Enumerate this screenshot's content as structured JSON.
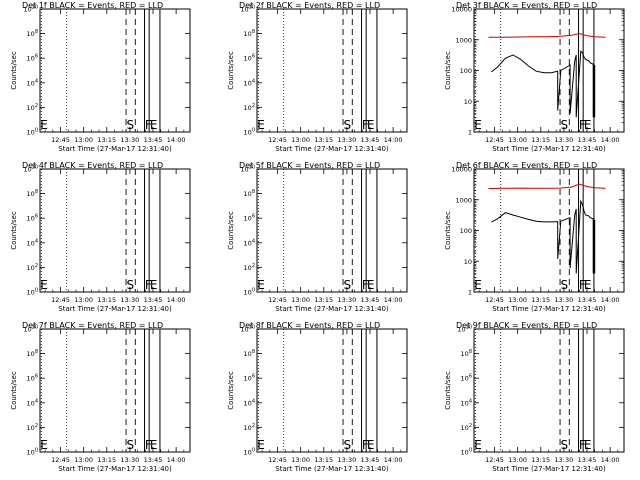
{
  "colors": {
    "events": "#000000",
    "lld": "#cc0000",
    "background": "#ffffff"
  },
  "chart_data": [
    {
      "type": "line",
      "title": "Det 1f BLACK = Events, RED = LLD",
      "xlabel": "Start Time (27-Mar-17 12:31:40)",
      "ylabel": "Counts/sec",
      "yscale": "log",
      "ylim": [
        1.0,
        10000000000.0
      ],
      "ytick_labels": [
        "10^0",
        "10^2",
        "10^4",
        "10^6",
        "10^8",
        "10^10"
      ],
      "xtick_labels": [
        "12:45",
        "13:00",
        "13:15",
        "13:30",
        "13:45",
        "14:00"
      ],
      "vertical_markers": [
        "E",
        "S",
        "F",
        "E"
      ],
      "series": []
    },
    {
      "type": "line",
      "title": "Det 2f BLACK = Events, RED = LLD",
      "xlabel": "Start Time (27-Mar-17 12:31:40)",
      "ylabel": "Counts/sec",
      "yscale": "log",
      "ylim": [
        1.0,
        10000000000.0
      ],
      "ytick_labels": [
        "10^0",
        "10^2",
        "10^4",
        "10^6",
        "10^8",
        "10^10"
      ],
      "xtick_labels": [
        "12:45",
        "13:00",
        "13:15",
        "13:30",
        "13:45",
        "14:00"
      ],
      "vertical_markers": [
        "E",
        "S",
        "F",
        "E"
      ],
      "series": []
    },
    {
      "type": "line",
      "title": "Det 3f BLACK = Events, RED = LLD",
      "xlabel": "Start Time (27-Mar-17 12:31:40)",
      "ylabel": "Counts/sec",
      "yscale": "log",
      "ylim": [
        1,
        10000
      ],
      "ytick_labels": [
        "1",
        "10",
        "100",
        "1000",
        "10000"
      ],
      "xtick_labels": [
        "12:45",
        "13:00",
        "13:15",
        "13:30",
        "13:45",
        "14:00"
      ],
      "vertical_markers": [
        "E",
        "S",
        "F",
        "E"
      ],
      "series": [
        {
          "color": "#cc0000",
          "x": [
            "12:41",
            "12:50",
            "13:00",
            "13:10",
            "13:20",
            "13:28",
            "13:35",
            "13:40",
            "13:45",
            "13:50",
            "13:57"
          ],
          "y": [
            1200,
            1200,
            1230,
            1260,
            1260,
            1300,
            1400,
            1600,
            1350,
            1250,
            1200
          ]
        },
        {
          "color": "#000000",
          "x": [
            "12:43",
            "12:47",
            "12:52",
            "12:57",
            "13:02",
            "13:07",
            "13:12",
            "13:17",
            "13:22",
            "13:26",
            "13:26",
            "13:28",
            "13:34",
            "13:34",
            "13:37",
            "13:38",
            "13:38",
            "13:41",
            "13:42",
            "13:43",
            "13:44",
            "13:46",
            "13:47",
            "13:49",
            "13:49",
            "13:50",
            "13:50"
          ],
          "y": [
            90,
            130,
            250,
            320,
            230,
            140,
            95,
            85,
            85,
            95,
            5,
            100,
            150,
            4,
            200,
            320,
            3,
            420,
            380,
            280,
            230,
            210,
            180,
            160,
            3,
            150,
            3
          ]
        }
      ]
    },
    {
      "type": "line",
      "title": "Det 4f BLACK = Events, RED = LLD",
      "xlabel": "Start Time (27-Mar-17 12:31:40)",
      "ylabel": "Counts/sec",
      "yscale": "log",
      "ylim": [
        1.0,
        10000000000.0
      ],
      "ytick_labels": [
        "10^0",
        "10^2",
        "10^4",
        "10^6",
        "10^8",
        "10^10"
      ],
      "xtick_labels": [
        "12:45",
        "13:00",
        "13:15",
        "13:30",
        "13:45",
        "14:00"
      ],
      "vertical_markers": [
        "E",
        "S",
        "F",
        "E"
      ],
      "series": []
    },
    {
      "type": "line",
      "title": "Det 5f BLACK = Events, RED = LLD",
      "xlabel": "Start Time (27-Mar-17 12:31:40)",
      "ylabel": "Counts/sec",
      "yscale": "log",
      "ylim": [
        1.0,
        10000000000.0
      ],
      "ytick_labels": [
        "10^0",
        "10^2",
        "10^4",
        "10^6",
        "10^8",
        "10^10"
      ],
      "xtick_labels": [
        "12:45",
        "13:00",
        "13:15",
        "13:30",
        "13:45",
        "14:00"
      ],
      "vertical_markers": [
        "E",
        "S",
        "F",
        "E"
      ],
      "series": []
    },
    {
      "type": "line",
      "title": "Det 6f BLACK = Events, RED = LLD",
      "xlabel": "Start Time (27-Mar-17 12:31:40)",
      "ylabel": "Counts/sec",
      "yscale": "log",
      "ylim": [
        1,
        10000
      ],
      "ytick_labels": [
        "1",
        "10",
        "100",
        "1000",
        "10000"
      ],
      "xtick_labels": [
        "12:45",
        "13:00",
        "13:15",
        "13:30",
        "13:45",
        "14:00"
      ],
      "vertical_markers": [
        "E",
        "S",
        "F",
        "E"
      ],
      "series": [
        {
          "color": "#cc0000",
          "x": [
            "12:41",
            "12:50",
            "13:00",
            "13:10",
            "13:20",
            "13:28",
            "13:35",
            "13:40",
            "13:45",
            "13:50",
            "13:57"
          ],
          "y": [
            2300,
            2350,
            2400,
            2350,
            2350,
            2400,
            2600,
            3200,
            2700,
            2450,
            2350
          ]
        },
        {
          "color": "#000000",
          "x": [
            "12:43",
            "12:47",
            "12:52",
            "12:57",
            "13:02",
            "13:07",
            "13:12",
            "13:17",
            "13:22",
            "13:26",
            "13:26",
            "13:28",
            "13:34",
            "13:34",
            "13:37",
            "13:38",
            "13:38",
            "13:41",
            "13:42",
            "13:43",
            "13:44",
            "13:46",
            "13:47",
            "13:49",
            "13:49",
            "13:50",
            "13:50"
          ],
          "y": [
            190,
            240,
            380,
            320,
            270,
            230,
            200,
            190,
            190,
            195,
            12,
            200,
            260,
            6,
            320,
            500,
            4,
            900,
            700,
            450,
            320,
            300,
            260,
            240,
            4,
            220,
            4
          ]
        }
      ]
    },
    {
      "type": "line",
      "title": "Det 7f BLACK = Events, RED = LLD",
      "xlabel": "Start Time (27-Mar-17 12:31:40)",
      "ylabel": "Counts/sec",
      "yscale": "log",
      "ylim": [
        1.0,
        10000000000.0
      ],
      "ytick_labels": [
        "10^0",
        "10^2",
        "10^4",
        "10^6",
        "10^8",
        "10^10"
      ],
      "xtick_labels": [
        "12:45",
        "13:00",
        "13:15",
        "13:30",
        "13:45",
        "14:00"
      ],
      "vertical_markers": [
        "E",
        "S",
        "F",
        "E"
      ],
      "series": []
    },
    {
      "type": "line",
      "title": "Det 8f BLACK = Events, RED = LLD",
      "xlabel": "Start Time (27-Mar-17 12:31:40)",
      "ylabel": "Counts/sec",
      "yscale": "log",
      "ylim": [
        1.0,
        10000000000.0
      ],
      "ytick_labels": [
        "10^0",
        "10^2",
        "10^4",
        "10^6",
        "10^8",
        "10^10"
      ],
      "xtick_labels": [
        "12:45",
        "13:00",
        "13:15",
        "13:30",
        "13:45",
        "14:00"
      ],
      "vertical_markers": [
        "E",
        "S",
        "F",
        "E"
      ],
      "series": []
    },
    {
      "type": "line",
      "title": "Det 9f BLACK = Events, RED = LLD",
      "xlabel": "Start Time (27-Mar-17 12:31:40)",
      "ylabel": "Counts/sec",
      "yscale": "log",
      "ylim": [
        1.0,
        10000000000.0
      ],
      "ytick_labels": [
        "10^0",
        "10^2",
        "10^4",
        "10^6",
        "10^8",
        "10^10"
      ],
      "xtick_labels": [
        "12:45",
        "13:00",
        "13:15",
        "13:30",
        "13:45",
        "14:00"
      ],
      "vertical_markers": [
        "E",
        "S",
        "F",
        "E"
      ],
      "series": []
    }
  ]
}
